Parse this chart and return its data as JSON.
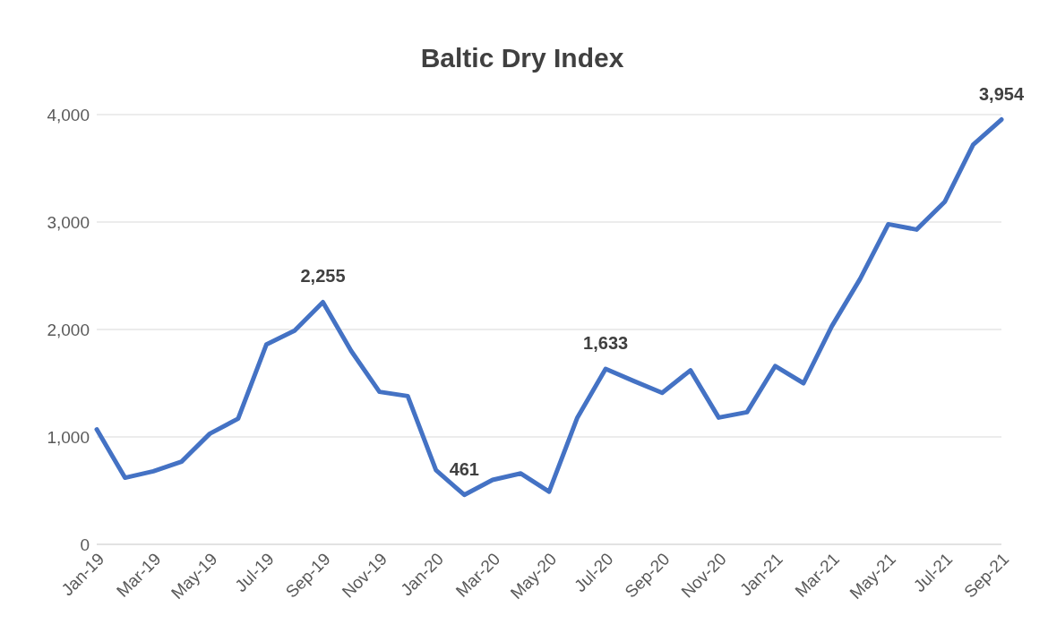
{
  "chart_data": {
    "type": "line",
    "title": "Baltic Dry Index",
    "categories": [
      "Jan-19",
      null,
      "Mar-19",
      null,
      "May-19",
      null,
      "Jul-19",
      null,
      "Sep-19",
      null,
      "Nov-19",
      null,
      "Jan-20",
      null,
      "Mar-20",
      null,
      "May-20",
      null,
      "Jul-20",
      null,
      "Sep-20",
      null,
      "Nov-20",
      null,
      "Jan-21",
      null,
      "Mar-21",
      null,
      "May-21",
      null,
      "Jul-21",
      null,
      "Sep-21"
    ],
    "series": [
      {
        "color": "#4472c4",
        "values": [
          1070,
          620,
          680,
          770,
          1030,
          1170,
          1860,
          1990,
          2255,
          1800,
          1420,
          1380,
          690,
          461,
          600,
          660,
          490,
          1180,
          1633,
          1520,
          1410,
          1620,
          1180,
          1230,
          1660,
          1500,
          2030,
          2470,
          2980,
          2930,
          3190,
          3720,
          3954
        ],
        "value_labels": [
          null,
          null,
          null,
          null,
          null,
          null,
          null,
          null,
          "2,255",
          null,
          null,
          null,
          null,
          "461",
          null,
          null,
          null,
          null,
          "1,633",
          null,
          null,
          null,
          null,
          null,
          null,
          null,
          null,
          null,
          null,
          null,
          null,
          null,
          "3,954"
        ]
      }
    ],
    "ylim": [
      0,
      4000
    ],
    "yticks": [
      0,
      {
        "value": 1000,
        "label": "1,000"
      },
      {
        "value": 2000,
        "label": "2,000"
      },
      {
        "value": 3000,
        "label": "3,000"
      },
      {
        "value": 4000,
        "label": "4,000"
      }
    ],
    "grid": "y",
    "legend": false,
    "marker": "none",
    "line_style": "solid"
  }
}
